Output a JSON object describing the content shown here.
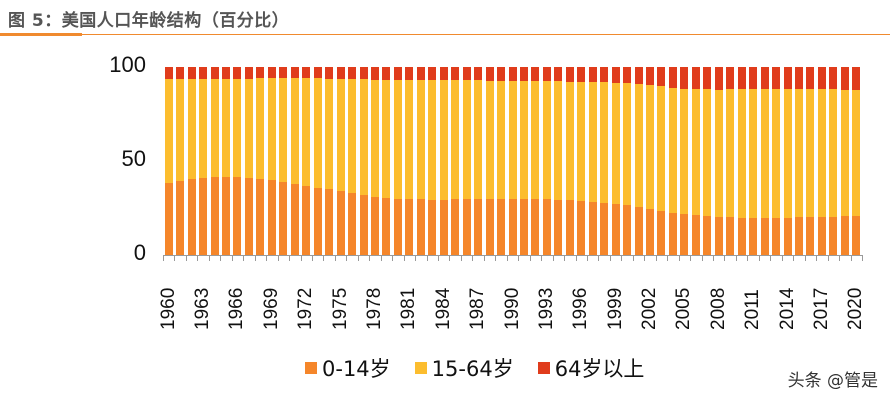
{
  "title": "图 5：美国人口年龄结构（百分比）",
  "watermark": "头条 @管是",
  "colors": {
    "age_0_14": "#f5862a",
    "age_15_64": "#fcbd2e",
    "age_65_plus": "#e03c1c",
    "accent": "#f08a2e"
  },
  "legend": [
    "0-14岁",
    "15-64岁",
    "64岁以上"
  ],
  "chart_data": {
    "type": "bar",
    "stacked": true,
    "title": "图 5：美国人口年龄结构（百分比）",
    "xlabel": "",
    "ylabel": "",
    "ylim": [
      0,
      100
    ],
    "yticks": [
      0,
      50,
      100
    ],
    "xtick_labels": [
      "1960",
      "1963",
      "1966",
      "1969",
      "1972",
      "1975",
      "1978",
      "1981",
      "1984",
      "1987",
      "1990",
      "1993",
      "1996",
      "1999",
      "2002",
      "2005",
      "2008",
      "2011",
      "2014",
      "2017",
      "2020"
    ],
    "legend_position": "bottom",
    "grid": false,
    "categories": [
      "1960",
      "1961",
      "1962",
      "1963",
      "1964",
      "1965",
      "1966",
      "1967",
      "1968",
      "1969",
      "1970",
      "1971",
      "1972",
      "1973",
      "1974",
      "1975",
      "1976",
      "1977",
      "1978",
      "1979",
      "1980",
      "1981",
      "1982",
      "1983",
      "1984",
      "1985",
      "1986",
      "1987",
      "1988",
      "1989",
      "1990",
      "1991",
      "1992",
      "1993",
      "1994",
      "1995",
      "1996",
      "1997",
      "1998",
      "1999",
      "2000",
      "2001",
      "2002",
      "2003",
      "2004",
      "2005",
      "2006",
      "2007",
      "2008",
      "2009",
      "2010",
      "2011",
      "2012",
      "2013",
      "2014",
      "2015",
      "2016",
      "2017",
      "2018",
      "2019",
      "2020"
    ],
    "series": [
      {
        "name": "0-14岁",
        "values": [
          38.5,
          39.5,
          40.4,
          41.1,
          41.5,
          41.5,
          41.5,
          41.1,
          40.6,
          40.1,
          39.0,
          37.9,
          36.9,
          35.8,
          34.9,
          34.0,
          33.0,
          32.1,
          31.0,
          30.5,
          30.0,
          29.8,
          29.6,
          29.5,
          29.5,
          29.6,
          29.7,
          29.8,
          29.8,
          29.9,
          30.0,
          29.9,
          29.8,
          29.7,
          29.5,
          29.2,
          28.8,
          28.3,
          27.8,
          27.1,
          26.5,
          25.5,
          24.5,
          23.5,
          22.5,
          21.8,
          21.3,
          20.8,
          20.4,
          20.0,
          19.8,
          19.7,
          19.7,
          19.7,
          19.8,
          20.0,
          20.1,
          20.3,
          20.4,
          20.5,
          20.5
        ]
      },
      {
        "name": "15-64岁",
        "values": [
          55.0,
          54.0,
          53.2,
          52.6,
          52.3,
          52.3,
          52.3,
          52.7,
          53.3,
          53.8,
          54.9,
          56.0,
          57.0,
          58.1,
          58.9,
          59.7,
          60.6,
          61.4,
          62.3,
          62.7,
          63.2,
          63.4,
          63.6,
          63.6,
          63.6,
          63.5,
          63.3,
          63.1,
          63.0,
          62.8,
          62.6,
          62.6,
          62.6,
          62.6,
          62.8,
          63.0,
          63.3,
          63.7,
          64.0,
          64.6,
          64.9,
          65.4,
          65.9,
          66.3,
          66.6,
          66.5,
          66.9,
          67.3,
          67.6,
          68.2,
          68.4,
          68.5,
          68.6,
          68.6,
          68.4,
          68.1,
          68.2,
          68.0,
          67.8,
          67.5,
          67.3
        ]
      },
      {
        "name": "64岁以上",
        "values": [
          6.5,
          6.5,
          6.4,
          6.3,
          6.2,
          6.2,
          6.2,
          6.2,
          6.1,
          6.1,
          6.1,
          6.1,
          6.1,
          6.1,
          6.2,
          6.3,
          6.4,
          6.5,
          6.7,
          6.8,
          6.8,
          6.8,
          6.8,
          6.9,
          6.9,
          6.9,
          7.0,
          7.1,
          7.2,
          7.3,
          7.4,
          7.5,
          7.6,
          7.7,
          7.7,
          7.8,
          7.9,
          8.0,
          8.2,
          8.3,
          8.6,
          9.1,
          9.6,
          10.2,
          10.9,
          11.7,
          11.8,
          11.9,
          12.0,
          11.8,
          11.8,
          11.8,
          11.7,
          11.7,
          11.8,
          11.9,
          11.7,
          11.7,
          11.8,
          12.0,
          12.2
        ]
      }
    ]
  }
}
